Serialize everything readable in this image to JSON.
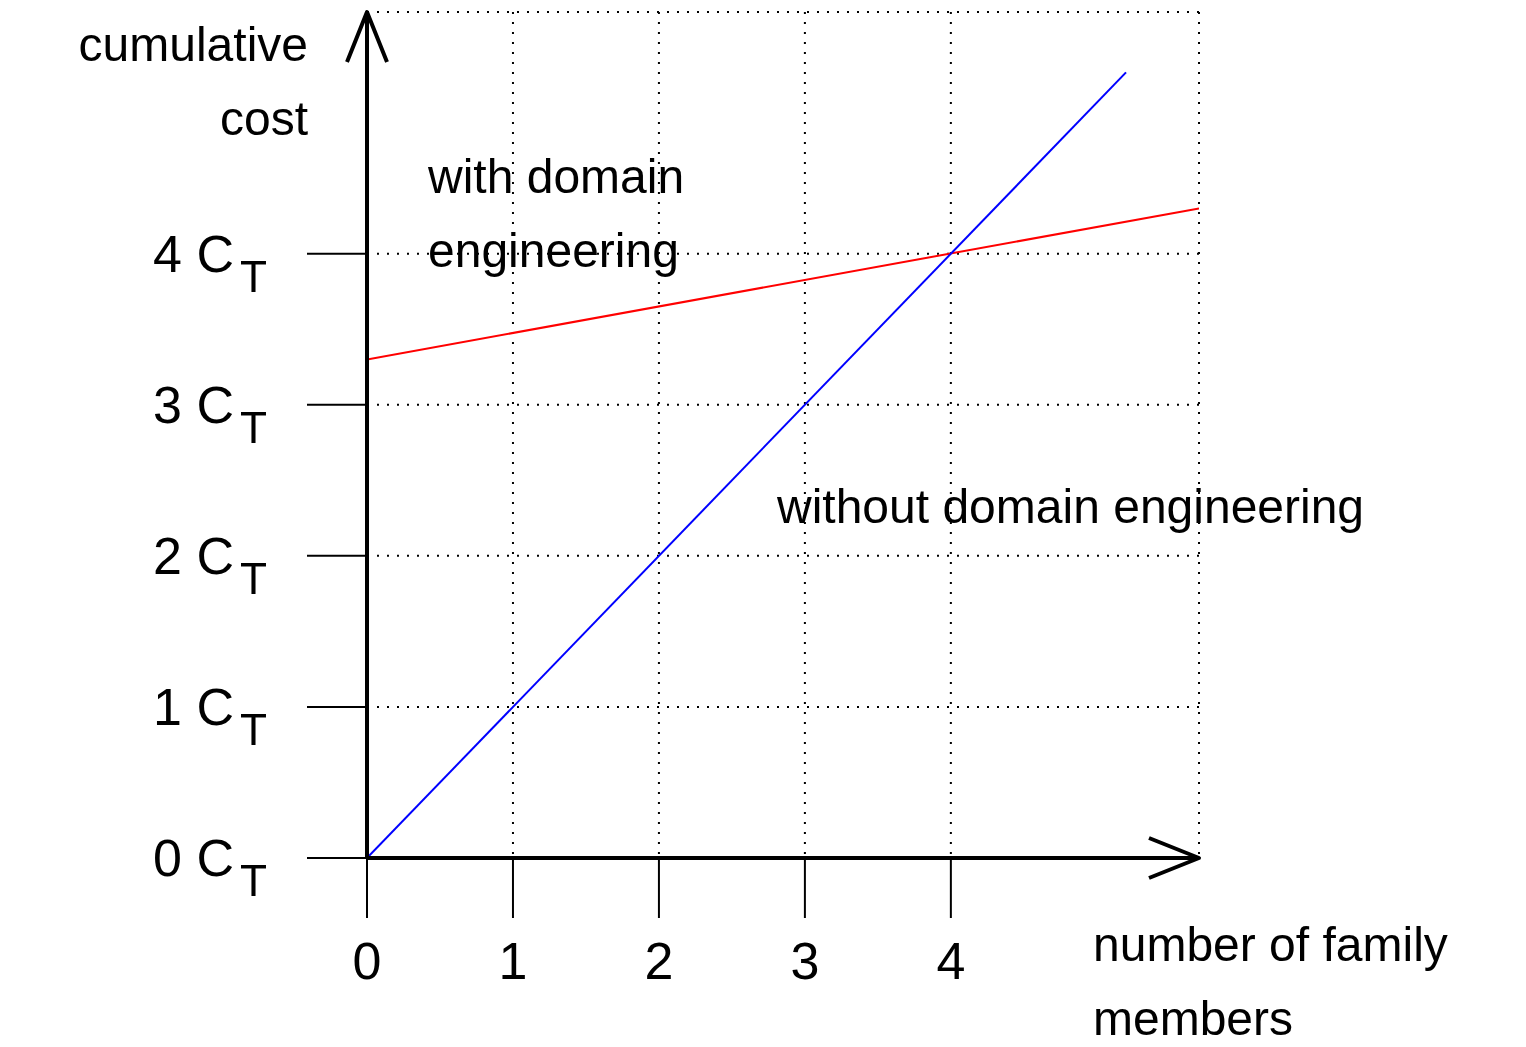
{
  "chart_data": {
    "type": "line",
    "xlabel": "number of family members",
    "ylabel": "cumulative cost",
    "xlim": [
      0,
      5.7
    ],
    "ylim": [
      0,
      5.6
    ],
    "xticks": [
      0,
      1,
      2,
      3,
      4
    ],
    "yticks": [
      {
        "value": 0,
        "label": "0 C$_{T}$"
      },
      {
        "value": 1,
        "label": "1 C$_{T}$"
      },
      {
        "value": 2,
        "label": "2 C$_{T}$"
      },
      {
        "value": 3,
        "label": "3 C$_{T}$"
      },
      {
        "value": 4,
        "label": "4 C$_{T}$"
      }
    ],
    "grid": true,
    "marker": "none",
    "line_style": "solid",
    "series": [
      {
        "name": "with domain engineering",
        "color": "#ff0000",
        "x": [
          0,
          5.7
        ],
        "values": [
          3.3,
          4.3
        ]
      },
      {
        "name": "without domain engineering",
        "color": "#0000ff",
        "x": [
          0,
          5.2
        ],
        "values": [
          0,
          5.2
        ]
      }
    ]
  }
}
